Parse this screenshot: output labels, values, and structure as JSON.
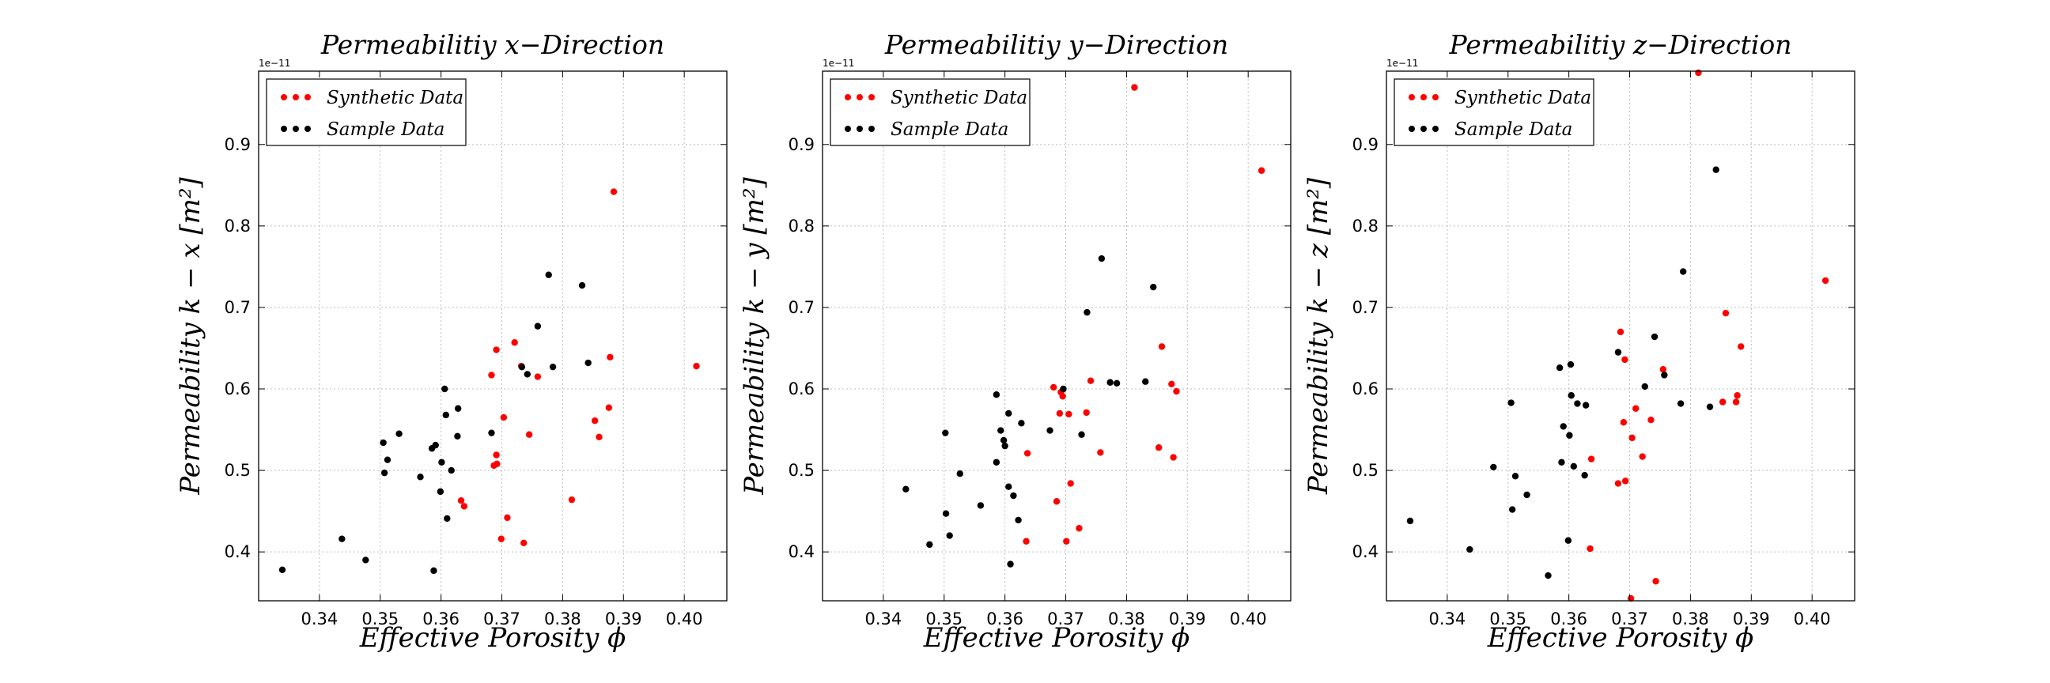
{
  "chart_data": [
    {
      "type": "scatter",
      "title": "Permeabilitiy x−Direction",
      "xlabel": "Effective Porosity ϕ",
      "ylabel": "Permeability k − x [m²]",
      "y_multiplier": "1e−11",
      "xlim": [
        0.33,
        0.407
      ],
      "ylim": [
        0.34,
        0.99
      ],
      "xticks": [
        "0.34",
        "0.35",
        "0.36",
        "0.37",
        "0.38",
        "0.39",
        "0.40"
      ],
      "yticks": [
        "0.4",
        "0.5",
        "0.6",
        "0.7",
        "0.8",
        "0.9"
      ],
      "grid": true,
      "legend_position": "top-left",
      "series": [
        {
          "name": "Synthetic Data",
          "color": "#ff0000",
          "points": [
            [
              0.3683,
              0.617
            ],
            [
              0.3691,
              0.648
            ],
            [
              0.3687,
              0.506
            ],
            [
              0.3691,
              0.519
            ],
            [
              0.3692,
              0.508
            ],
            [
              0.3703,
              0.565
            ],
            [
              0.3721,
              0.657
            ],
            [
              0.3732,
              0.628
            ],
            [
              0.3745,
              0.544
            ],
            [
              0.3759,
              0.615
            ],
            [
              0.3633,
              0.463
            ],
            [
              0.3638,
              0.456
            ],
            [
              0.3699,
              0.416
            ],
            [
              0.3709,
              0.442
            ],
            [
              0.3736,
              0.411
            ],
            [
              0.3815,
              0.464
            ],
            [
              0.3853,
              0.561
            ],
            [
              0.386,
              0.541
            ],
            [
              0.3876,
              0.577
            ],
            [
              0.3878,
              0.639
            ],
            [
              0.3884,
              0.842
            ],
            [
              0.402,
              0.628
            ]
          ]
        },
        {
          "name": "Sample Data",
          "color": "#000000",
          "points": [
            [
              0.3339,
              0.378
            ],
            [
              0.3437,
              0.416
            ],
            [
              0.3476,
              0.39
            ],
            [
              0.3505,
              0.534
            ],
            [
              0.3507,
              0.497
            ],
            [
              0.3512,
              0.513
            ],
            [
              0.3531,
              0.545
            ],
            [
              0.3566,
              0.492
            ],
            [
              0.3585,
              0.527
            ],
            [
              0.3588,
              0.377
            ],
            [
              0.3591,
              0.531
            ],
            [
              0.3599,
              0.474
            ],
            [
              0.3601,
              0.51
            ],
            [
              0.3606,
              0.6
            ],
            [
              0.3608,
              0.568
            ],
            [
              0.361,
              0.441
            ],
            [
              0.3617,
              0.5
            ],
            [
              0.3627,
              0.542
            ],
            [
              0.3628,
              0.576
            ],
            [
              0.3683,
              0.546
            ],
            [
              0.3733,
              0.627
            ],
            [
              0.3742,
              0.618
            ],
            [
              0.3759,
              0.677
            ],
            [
              0.3777,
              0.74
            ],
            [
              0.3784,
              0.627
            ],
            [
              0.3832,
              0.727
            ],
            [
              0.3842,
              0.632
            ]
          ]
        }
      ]
    },
    {
      "type": "scatter",
      "title": "Permeabilitiy y−Direction",
      "xlabel": "Effective Porosity ϕ",
      "ylabel": "Permeability k − y [m²]",
      "y_multiplier": "1e−11",
      "xlim": [
        0.33,
        0.407
      ],
      "ylim": [
        0.34,
        0.99
      ],
      "xticks": [
        "0.34",
        "0.35",
        "0.36",
        "0.37",
        "0.38",
        "0.39",
        "0.40"
      ],
      "yticks": [
        "0.4",
        "0.5",
        "0.6",
        "0.7",
        "0.8",
        "0.9"
      ],
      "grid": true,
      "legend_position": "top-left",
      "series": [
        {
          "name": "Synthetic Data",
          "color": "#ff0000",
          "points": [
            [
              0.3637,
              0.521
            ],
            [
              0.3635,
              0.413
            ],
            [
              0.368,
              0.602
            ],
            [
              0.3685,
              0.462
            ],
            [
              0.369,
              0.57
            ],
            [
              0.3692,
              0.596
            ],
            [
              0.3695,
              0.591
            ],
            [
              0.3701,
              0.413
            ],
            [
              0.3705,
              0.569
            ],
            [
              0.3708,
              0.484
            ],
            [
              0.3722,
              0.429
            ],
            [
              0.3734,
              0.571
            ],
            [
              0.3741,
              0.61
            ],
            [
              0.3757,
              0.522
            ],
            [
              0.3853,
              0.528
            ],
            [
              0.3858,
              0.652
            ],
            [
              0.3874,
              0.606
            ],
            [
              0.3877,
              0.516
            ],
            [
              0.3882,
              0.597
            ],
            [
              0.3813,
              0.97
            ],
            [
              0.4022,
              0.868
            ]
          ]
        },
        {
          "name": "Sample Data",
          "color": "#000000",
          "points": [
            [
              0.3437,
              0.477
            ],
            [
              0.3476,
              0.409
            ],
            [
              0.3502,
              0.546
            ],
            [
              0.3503,
              0.447
            ],
            [
              0.3509,
              0.42
            ],
            [
              0.3526,
              0.496
            ],
            [
              0.356,
              0.457
            ],
            [
              0.3586,
              0.593
            ],
            [
              0.3586,
              0.51
            ],
            [
              0.3593,
              0.549
            ],
            [
              0.3598,
              0.537
            ],
            [
              0.36,
              0.53
            ],
            [
              0.3606,
              0.48
            ],
            [
              0.3606,
              0.57
            ],
            [
              0.3609,
              0.385
            ],
            [
              0.3614,
              0.469
            ],
            [
              0.3622,
              0.439
            ],
            [
              0.3627,
              0.558
            ],
            [
              0.3674,
              0.549
            ],
            [
              0.3696,
              0.6
            ],
            [
              0.3726,
              0.544
            ],
            [
              0.3735,
              0.694
            ],
            [
              0.3759,
              0.76
            ],
            [
              0.3773,
              0.608
            ],
            [
              0.3784,
              0.607
            ],
            [
              0.3831,
              0.609
            ],
            [
              0.3844,
              0.725
            ]
          ]
        }
      ]
    },
    {
      "type": "scatter",
      "title": "Permeabilitiy z−Direction",
      "xlabel": "Effective Porosity ϕ",
      "ylabel": "Permeability k − z [m²]",
      "y_multiplier": "1e−11",
      "xlim": [
        0.33,
        0.407
      ],
      "ylim": [
        0.34,
        0.99
      ],
      "xticks": [
        "0.34",
        "0.35",
        "0.36",
        "0.37",
        "0.38",
        "0.39",
        "0.40"
      ],
      "yticks": [
        "0.4",
        "0.5",
        "0.6",
        "0.7",
        "0.8",
        "0.9"
      ],
      "grid": true,
      "legend_position": "top-left",
      "series": [
        {
          "name": "Synthetic Data",
          "color": "#ff0000",
          "points": [
            [
              0.3635,
              0.404
            ],
            [
              0.3637,
              0.514
            ],
            [
              0.3681,
              0.484
            ],
            [
              0.3685,
              0.67
            ],
            [
              0.369,
              0.559
            ],
            [
              0.3692,
              0.636
            ],
            [
              0.3693,
              0.487
            ],
            [
              0.3702,
              0.343
            ],
            [
              0.3704,
              0.54
            ],
            [
              0.371,
              0.576
            ],
            [
              0.3721,
              0.517
            ],
            [
              0.3735,
              0.562
            ],
            [
              0.3743,
              0.364
            ],
            [
              0.3755,
              0.624
            ],
            [
              0.3813,
              0.988
            ],
            [
              0.3853,
              0.584
            ],
            [
              0.3858,
              0.693
            ],
            [
              0.3875,
              0.584
            ],
            [
              0.3877,
              0.592
            ],
            [
              0.3883,
              0.652
            ],
            [
              0.4022,
              0.733
            ]
          ]
        },
        {
          "name": "Sample Data",
          "color": "#000000",
          "points": [
            [
              0.3339,
              0.438
            ],
            [
              0.3437,
              0.403
            ],
            [
              0.3476,
              0.504
            ],
            [
              0.3505,
              0.583
            ],
            [
              0.3507,
              0.452
            ],
            [
              0.3512,
              0.493
            ],
            [
              0.3531,
              0.47
            ],
            [
              0.3566,
              0.371
            ],
            [
              0.3585,
              0.626
            ],
            [
              0.3588,
              0.51
            ],
            [
              0.3591,
              0.554
            ],
            [
              0.3599,
              0.414
            ],
            [
              0.3601,
              0.543
            ],
            [
              0.3603,
              0.63
            ],
            [
              0.3604,
              0.592
            ],
            [
              0.3608,
              0.505
            ],
            [
              0.3614,
              0.582
            ],
            [
              0.3626,
              0.494
            ],
            [
              0.3628,
              0.58
            ],
            [
              0.3681,
              0.645
            ],
            [
              0.3725,
              0.603
            ],
            [
              0.3741,
              0.664
            ],
            [
              0.3757,
              0.617
            ],
            [
              0.3784,
              0.582
            ],
            [
              0.3788,
              0.744
            ],
            [
              0.3832,
              0.578
            ],
            [
              0.3842,
              0.869
            ]
          ]
        }
      ]
    }
  ]
}
